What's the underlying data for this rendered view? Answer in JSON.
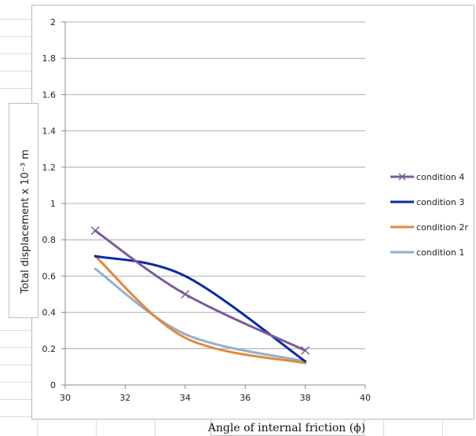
{
  "chart_data": {
    "type": "line",
    "title": "",
    "xlabel": "Angle of internal friction (ϕ)",
    "ylabel": "Total displacement x 10⁻³ m",
    "xlim": [
      30,
      40
    ],
    "ylim": [
      0,
      2
    ],
    "x_ticks": [
      "30",
      "32",
      "34",
      "36",
      "38",
      "40"
    ],
    "y_ticks": [
      "0",
      "0.2",
      "0.4",
      "0.6",
      "0.8",
      "1",
      "1.2",
      "1.4",
      "1.6",
      "1.8",
      "2"
    ],
    "grid": "horizontal",
    "legend_position": "right",
    "smooth": true,
    "series": [
      {
        "name": "condition 4",
        "color": "#7a5c9a",
        "marker": "x",
        "x": [
          31,
          34,
          38
        ],
        "y": [
          0.85,
          0.5,
          0.19
        ]
      },
      {
        "name": "condition 3",
        "color": "#0a2aa6",
        "marker": "none",
        "x": [
          31,
          34,
          38
        ],
        "y": [
          0.71,
          0.6,
          0.13
        ]
      },
      {
        "name": "condition 2r",
        "color": "#e6883a",
        "marker": "none",
        "x": [
          31,
          34,
          38
        ],
        "y": [
          0.71,
          0.26,
          0.12
        ]
      },
      {
        "name": "condition 1",
        "color": "#93aed1",
        "marker": "none",
        "x": [
          31,
          34,
          38
        ],
        "y": [
          0.64,
          0.28,
          0.13
        ]
      }
    ]
  }
}
